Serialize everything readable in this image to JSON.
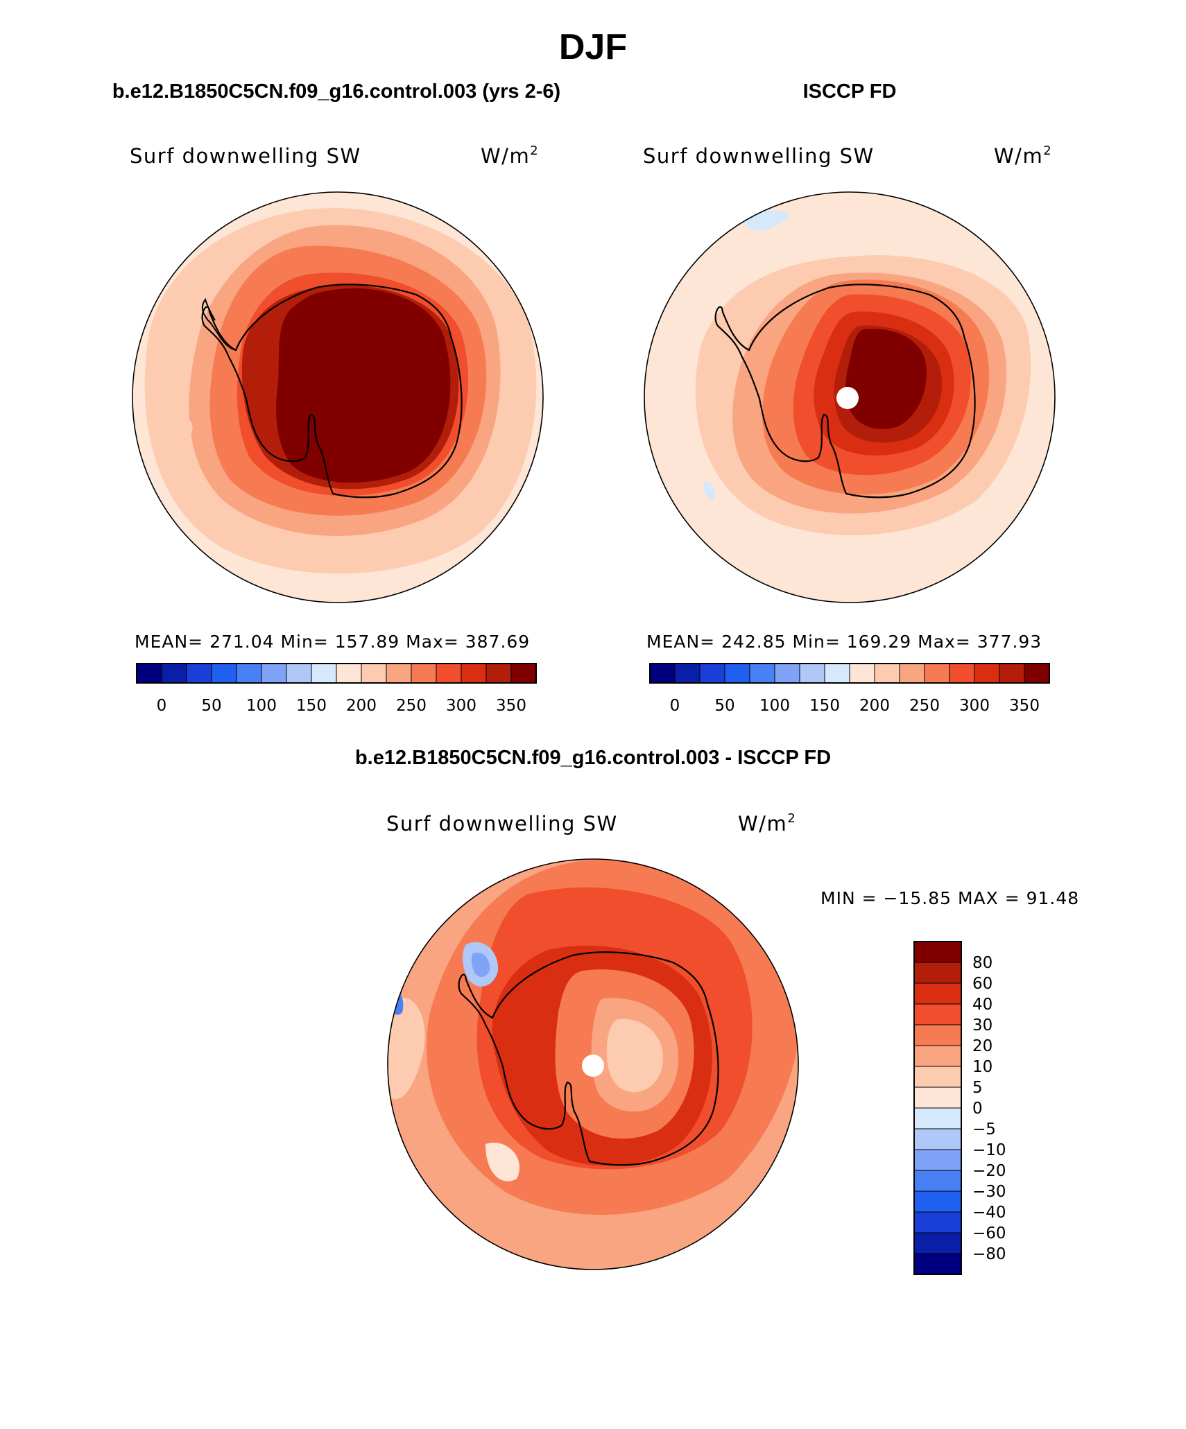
{
  "page": {
    "season_title": "DJF",
    "diff_title": "b.e12.B1850C5CN.f09_g16.control.003 - ISCCP FD"
  },
  "panels": [
    {
      "case_title": "b.e12.B1850C5CN.f09_g16.control.003 (yrs 2-6)",
      "variable": "Surf downwelling SW",
      "units": "W/m",
      "units_sup": "2",
      "stats": "MEAN= 271.04   Min= 157.89   Max= 387.69",
      "pole_hole": false
    },
    {
      "case_title": "ISCCP FD",
      "variable": "Surf downwelling SW",
      "units": "W/m",
      "units_sup": "2",
      "stats": "MEAN= 242.85   Min= 169.29   Max= 377.93",
      "pole_hole": true
    }
  ],
  "diff_panel": {
    "variable": "Surf downwelling SW",
    "units": "W/m",
    "units_sup": "2",
    "stats": "MIN = −15.85 MAX =  91.48",
    "pole_hole": true
  },
  "chart_data": [
    {
      "type": "heatmap",
      "projection": "south-polar-stereographic",
      "title": "Surf downwelling SW",
      "units": "W/m2",
      "mean": 271.04,
      "min": 157.89,
      "max": 387.69,
      "levels": [
        0,
        25,
        50,
        75,
        100,
        125,
        150,
        175,
        200,
        225,
        250,
        275,
        300,
        325,
        350,
        375
      ],
      "colorbar_ticks": [
        "0",
        "50",
        "100",
        "150",
        "200",
        "250",
        "300",
        "350"
      ],
      "colors": [
        "#00007f",
        "#0a1fa8",
        "#1a3fd6",
        "#2060f0",
        "#4a80f5",
        "#7fa3f6",
        "#b0c8f8",
        "#d6e8fb",
        "#fde6d6",
        "#fccbb0",
        "#f9a581",
        "#f77b52",
        "#f04e2c",
        "#d92e12",
        "#b21e0a",
        "#800000"
      ],
      "regions": [
        {
          "name": "southern-ocean-outer",
          "approx_value": 212
        },
        {
          "name": "mid-latitude-ring",
          "approx_value": 237
        },
        {
          "name": "sea-ice-zone",
          "approx_value": 290
        },
        {
          "name": "antarctic-coast",
          "approx_value": 340
        },
        {
          "name": "antarctic-plateau",
          "approx_value": 380
        }
      ]
    },
    {
      "type": "heatmap",
      "projection": "south-polar-stereographic",
      "title": "Surf downwelling SW",
      "units": "W/m2",
      "mean": 242.85,
      "min": 169.29,
      "max": 377.93,
      "levels": [
        0,
        25,
        50,
        75,
        100,
        125,
        150,
        175,
        200,
        225,
        250,
        275,
        300,
        325,
        350,
        375
      ],
      "colorbar_ticks": [
        "0",
        "50",
        "100",
        "150",
        "200",
        "250",
        "300",
        "350"
      ],
      "colors": [
        "#00007f",
        "#0a1fa8",
        "#1a3fd6",
        "#2060f0",
        "#4a80f5",
        "#7fa3f6",
        "#b0c8f8",
        "#d6e8fb",
        "#fde6d6",
        "#fccbb0",
        "#f9a581",
        "#f77b52",
        "#f04e2c",
        "#d92e12",
        "#b21e0a",
        "#800000"
      ],
      "regions": [
        {
          "name": "southern-ocean-outer",
          "approx_value": 188
        },
        {
          "name": "mid-latitude-ring",
          "approx_value": 212
        },
        {
          "name": "sea-ice-zone",
          "approx_value": 237
        },
        {
          "name": "antarctic-coast",
          "approx_value": 290
        },
        {
          "name": "antarctic-interior",
          "approx_value": 340
        },
        {
          "name": "antarctic-plateau",
          "approx_value": 370
        }
      ]
    },
    {
      "type": "heatmap",
      "projection": "south-polar-stereographic",
      "title": "Surf downwelling SW (difference)",
      "units": "W/m2",
      "min": -15.85,
      "max": 91.48,
      "levels": [
        -100,
        -80,
        -60,
        -40,
        -30,
        -20,
        -10,
        -5,
        0,
        5,
        10,
        20,
        30,
        40,
        60,
        80
      ],
      "colorbar_ticks": [
        "80",
        "60",
        "40",
        "30",
        "20",
        "10",
        "5",
        "0",
        "−5",
        "−10",
        "−20",
        "−30",
        "−40",
        "−60",
        "−80"
      ],
      "colors": [
        "#000080",
        "#0a1fa8",
        "#1a3fd6",
        "#2060f0",
        "#4a80f5",
        "#7fa3f6",
        "#b0c8f8",
        "#d6e8fb",
        "#fde6d6",
        "#fccbb0",
        "#f9a581",
        "#f77b52",
        "#f04e2c",
        "#d92e12",
        "#b21e0a",
        "#800000"
      ],
      "regions": [
        {
          "name": "mid-latitude-ocean",
          "approx_value": 15
        },
        {
          "name": "southern-ocean-ring",
          "approx_value": 35
        },
        {
          "name": "antarctic-coast",
          "approx_value": 50
        },
        {
          "name": "antarctic-interior",
          "approx_value": 25
        },
        {
          "name": "east-antarctic-plateau",
          "approx_value": 7
        },
        {
          "name": "drake-passage-anomaly",
          "approx_value": -12
        }
      ]
    }
  ]
}
